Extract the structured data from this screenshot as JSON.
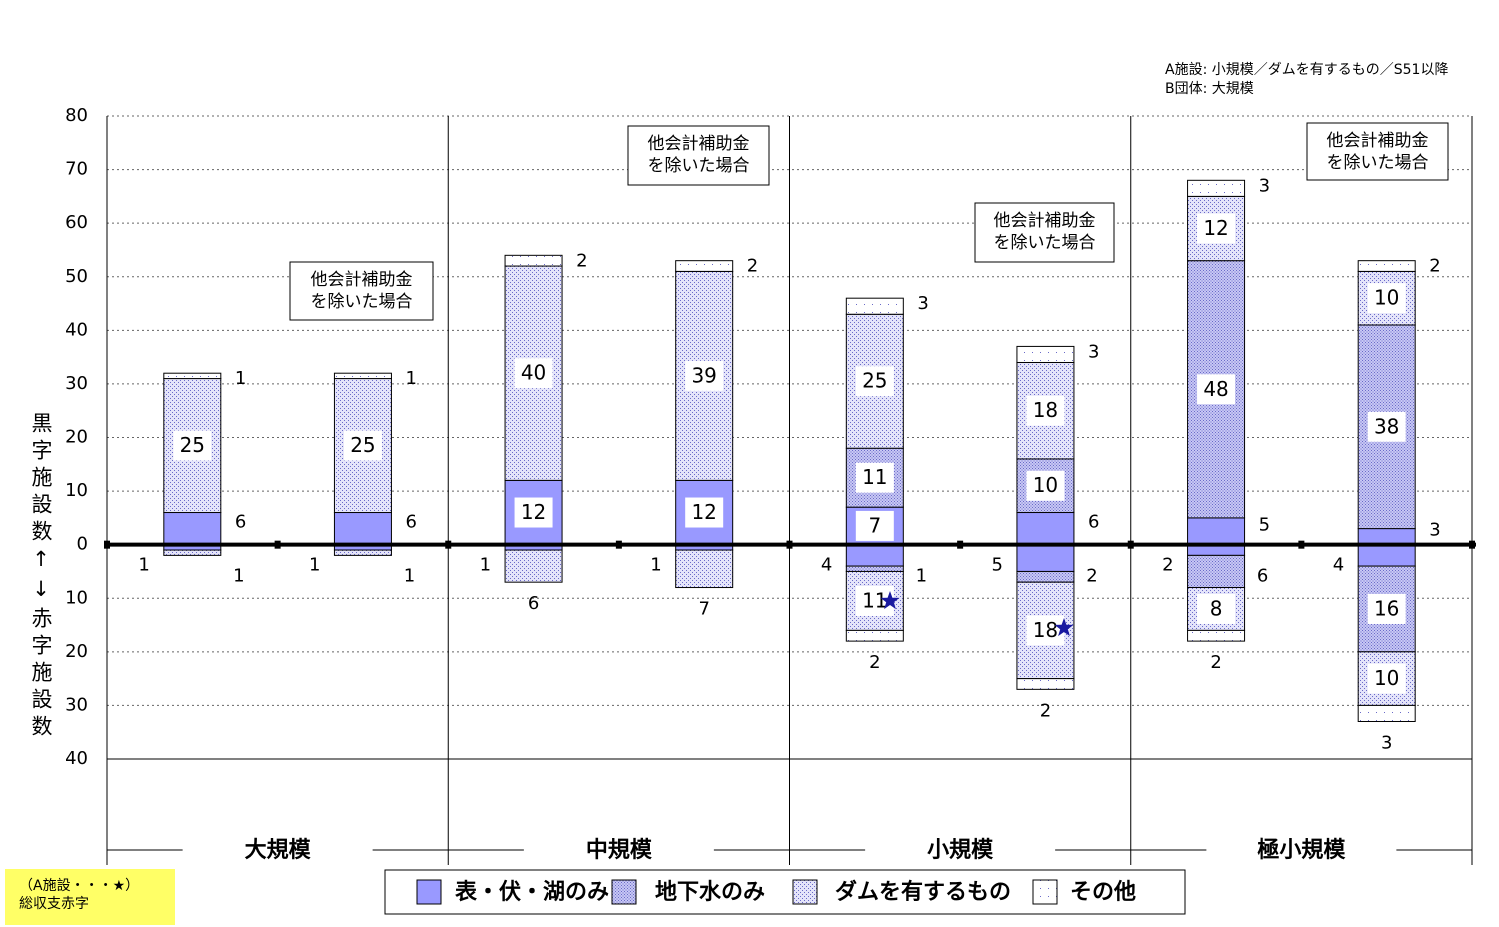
{
  "chart_data": {
    "type": "bar",
    "notes": [
      "A施設: 小規模／ダムを有するもの／S51以降",
      "B団体: 大規模"
    ],
    "y_label": "黒字施設数↑↓赤字施設数",
    "groups": [
      "大規模",
      "中規模",
      "小規模",
      "極小規模"
    ],
    "annotations": [
      [
        "他会計補助金",
        "を除いた場合"
      ],
      [
        "他会計補助金",
        "を除いた場合"
      ],
      [
        "他会計補助金",
        "を除いた場合"
      ],
      [
        "他会計補助金",
        "を除いた場合"
      ]
    ],
    "footnote": [
      "（A施設・・・★）",
      "総収支赤字"
    ],
    "ylim": [
      -40,
      80
    ],
    "yticks": [
      80,
      70,
      60,
      50,
      40,
      30,
      20,
      10,
      0,
      {
        "value": -10,
        "label": "10"
      },
      {
        "value": -20,
        "label": "20"
      },
      {
        "value": -30,
        "label": "30"
      },
      {
        "value": -40,
        "label": "40"
      }
    ],
    "grid": true,
    "series": [
      {
        "name": "表・伏・湖のみ",
        "color": "#9999ff",
        "values": [
          6,
          6,
          12,
          12,
          7,
          6,
          5,
          3
        ],
        "deficit_values": [
          -1,
          -1,
          -1,
          -1,
          -4,
          -5,
          -2,
          -4
        ],
        "deficit_value_labels": [
          "1",
          "1",
          "1",
          "1",
          "4",
          "5",
          "2",
          "4"
        ]
      },
      {
        "name": "地下水のみ",
        "color": "#c8c8f4",
        "values": [
          null,
          null,
          null,
          null,
          11,
          10,
          48,
          38
        ],
        "deficit_values": [
          null,
          null,
          null,
          null,
          -1,
          -2,
          -6,
          -16
        ],
        "deficit_value_labels": [
          null,
          null,
          null,
          null,
          "1",
          "2",
          "6",
          "16"
        ]
      },
      {
        "name": "ダムを有するもの",
        "color": "#e4e4fa",
        "values": [
          25,
          25,
          40,
          39,
          25,
          18,
          12,
          10
        ],
        "deficit_values": [
          -1,
          -1,
          -6,
          -7,
          -11,
          -18,
          -8,
          -10
        ],
        "deficit_value_labels": [
          "1",
          "1",
          "6",
          "7",
          "11",
          "18",
          "8",
          "10"
        ]
      },
      {
        "name": "その他",
        "color": "#ffffff",
        "values": [
          1,
          1,
          2,
          2,
          3,
          3,
          3,
          2
        ],
        "deficit_values": [
          null,
          null,
          null,
          null,
          -2,
          -2,
          -2,
          -3
        ],
        "deficit_value_labels": [
          null,
          null,
          null,
          null,
          "2",
          "2",
          "2",
          "3"
        ]
      }
    ]
  }
}
